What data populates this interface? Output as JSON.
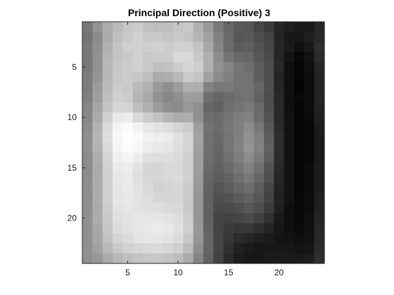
{
  "chart_data": {
    "type": "heatmap",
    "title": "Principal Direction (Positive) 3",
    "xlabel": "",
    "ylabel": "",
    "colormap": "gray",
    "xlim": [
      0.5,
      24.5
    ],
    "ylim": [
      0.5,
      24.5
    ],
    "y_direction": "reverse",
    "x_ticks": [
      5,
      10,
      15,
      20
    ],
    "y_ticks": [
      5,
      10,
      15,
      20
    ],
    "x_tick_labels": [
      "5",
      "10",
      "15",
      "20"
    ],
    "y_tick_labels": [
      "5",
      "10",
      "15",
      "20"
    ],
    "grid": false,
    "rows": 24,
    "cols": 24,
    "values": [
      [
        0.47,
        0.58,
        0.68,
        0.73,
        0.78,
        0.8,
        0.76,
        0.74,
        0.74,
        0.77,
        0.79,
        0.69,
        0.6,
        0.48,
        0.41,
        0.36,
        0.34,
        0.27,
        0.23,
        0.15,
        0.12,
        0.1,
        0.1,
        0.15
      ],
      [
        0.45,
        0.55,
        0.67,
        0.75,
        0.79,
        0.82,
        0.79,
        0.79,
        0.77,
        0.79,
        0.77,
        0.71,
        0.63,
        0.51,
        0.41,
        0.34,
        0.35,
        0.3,
        0.27,
        0.14,
        0.09,
        0.09,
        0.12,
        0.16
      ],
      [
        0.47,
        0.56,
        0.69,
        0.77,
        0.81,
        0.82,
        0.81,
        0.82,
        0.8,
        0.82,
        0.81,
        0.77,
        0.66,
        0.52,
        0.42,
        0.36,
        0.37,
        0.33,
        0.28,
        0.15,
        0.1,
        0.06,
        0.1,
        0.18
      ],
      [
        0.47,
        0.57,
        0.71,
        0.77,
        0.79,
        0.82,
        0.79,
        0.8,
        0.8,
        0.85,
        0.85,
        0.79,
        0.69,
        0.55,
        0.46,
        0.41,
        0.4,
        0.34,
        0.29,
        0.15,
        0.08,
        0.03,
        0.07,
        0.17
      ],
      [
        0.47,
        0.57,
        0.72,
        0.78,
        0.8,
        0.81,
        0.79,
        0.75,
        0.76,
        0.8,
        0.84,
        0.81,
        0.69,
        0.57,
        0.52,
        0.46,
        0.43,
        0.37,
        0.3,
        0.16,
        0.06,
        0.02,
        0.06,
        0.15
      ],
      [
        0.49,
        0.59,
        0.72,
        0.79,
        0.8,
        0.78,
        0.74,
        0.67,
        0.68,
        0.72,
        0.79,
        0.77,
        0.63,
        0.54,
        0.5,
        0.45,
        0.45,
        0.37,
        0.3,
        0.14,
        0.06,
        0.02,
        0.05,
        0.14
      ],
      [
        0.49,
        0.61,
        0.73,
        0.8,
        0.79,
        0.73,
        0.69,
        0.6,
        0.56,
        0.61,
        0.69,
        0.68,
        0.51,
        0.47,
        0.48,
        0.45,
        0.45,
        0.4,
        0.31,
        0.15,
        0.06,
        0.01,
        0.05,
        0.14
      ],
      [
        0.5,
        0.62,
        0.75,
        0.81,
        0.8,
        0.71,
        0.66,
        0.57,
        0.53,
        0.56,
        0.62,
        0.61,
        0.43,
        0.4,
        0.42,
        0.44,
        0.45,
        0.38,
        0.3,
        0.16,
        0.06,
        0.03,
        0.05,
        0.14
      ],
      [
        0.52,
        0.65,
        0.77,
        0.84,
        0.83,
        0.75,
        0.69,
        0.61,
        0.56,
        0.55,
        0.6,
        0.56,
        0.4,
        0.38,
        0.43,
        0.45,
        0.48,
        0.41,
        0.31,
        0.16,
        0.06,
        0.02,
        0.05,
        0.13
      ],
      [
        0.53,
        0.67,
        0.82,
        0.91,
        0.92,
        0.85,
        0.8,
        0.76,
        0.71,
        0.67,
        0.68,
        0.57,
        0.43,
        0.42,
        0.46,
        0.49,
        0.51,
        0.42,
        0.32,
        0.16,
        0.07,
        0.02,
        0.04,
        0.12
      ],
      [
        0.55,
        0.7,
        0.86,
        0.96,
        0.98,
        0.95,
        0.91,
        0.89,
        0.87,
        0.83,
        0.8,
        0.62,
        0.45,
        0.42,
        0.47,
        0.5,
        0.55,
        0.47,
        0.35,
        0.17,
        0.07,
        0.02,
        0.03,
        0.11
      ],
      [
        0.56,
        0.71,
        0.87,
        0.97,
        1.0,
        0.98,
        0.95,
        0.93,
        0.92,
        0.88,
        0.84,
        0.64,
        0.44,
        0.41,
        0.46,
        0.5,
        0.57,
        0.5,
        0.37,
        0.18,
        0.07,
        0.02,
        0.03,
        0.1
      ],
      [
        0.56,
        0.7,
        0.85,
        0.96,
        0.99,
        0.97,
        0.93,
        0.91,
        0.9,
        0.87,
        0.83,
        0.63,
        0.44,
        0.4,
        0.46,
        0.51,
        0.58,
        0.51,
        0.38,
        0.18,
        0.07,
        0.02,
        0.03,
        0.1
      ],
      [
        0.55,
        0.68,
        0.83,
        0.94,
        0.96,
        0.93,
        0.88,
        0.87,
        0.87,
        0.86,
        0.82,
        0.62,
        0.43,
        0.39,
        0.44,
        0.49,
        0.55,
        0.48,
        0.36,
        0.17,
        0.07,
        0.02,
        0.03,
        0.1
      ],
      [
        0.55,
        0.67,
        0.82,
        0.92,
        0.93,
        0.89,
        0.84,
        0.84,
        0.85,
        0.85,
        0.82,
        0.62,
        0.42,
        0.38,
        0.42,
        0.46,
        0.51,
        0.44,
        0.33,
        0.16,
        0.07,
        0.02,
        0.04,
        0.11
      ],
      [
        0.55,
        0.67,
        0.81,
        0.91,
        0.92,
        0.88,
        0.84,
        0.84,
        0.85,
        0.86,
        0.82,
        0.61,
        0.4,
        0.36,
        0.39,
        0.43,
        0.47,
        0.4,
        0.31,
        0.15,
        0.07,
        0.02,
        0.04,
        0.11
      ],
      [
        0.56,
        0.68,
        0.81,
        0.9,
        0.92,
        0.89,
        0.85,
        0.82,
        0.83,
        0.84,
        0.8,
        0.6,
        0.39,
        0.33,
        0.36,
        0.4,
        0.43,
        0.37,
        0.28,
        0.14,
        0.07,
        0.02,
        0.04,
        0.11
      ],
      [
        0.56,
        0.68,
        0.81,
        0.9,
        0.91,
        0.89,
        0.87,
        0.84,
        0.84,
        0.84,
        0.79,
        0.59,
        0.38,
        0.31,
        0.32,
        0.36,
        0.39,
        0.34,
        0.26,
        0.13,
        0.07,
        0.03,
        0.05,
        0.12
      ],
      [
        0.56,
        0.67,
        0.8,
        0.89,
        0.9,
        0.89,
        0.88,
        0.87,
        0.86,
        0.85,
        0.79,
        0.59,
        0.38,
        0.29,
        0.29,
        0.31,
        0.34,
        0.31,
        0.23,
        0.12,
        0.06,
        0.03,
        0.05,
        0.13
      ],
      [
        0.57,
        0.67,
        0.79,
        0.88,
        0.89,
        0.9,
        0.9,
        0.9,
        0.89,
        0.87,
        0.8,
        0.59,
        0.38,
        0.27,
        0.26,
        0.27,
        0.29,
        0.25,
        0.19,
        0.1,
        0.06,
        0.03,
        0.06,
        0.14
      ],
      [
        0.57,
        0.66,
        0.78,
        0.86,
        0.88,
        0.9,
        0.91,
        0.92,
        0.91,
        0.88,
        0.81,
        0.6,
        0.39,
        0.27,
        0.23,
        0.22,
        0.22,
        0.18,
        0.14,
        0.09,
        0.06,
        0.04,
        0.06,
        0.15
      ],
      [
        0.57,
        0.65,
        0.76,
        0.83,
        0.86,
        0.89,
        0.9,
        0.9,
        0.89,
        0.86,
        0.79,
        0.59,
        0.4,
        0.27,
        0.21,
        0.17,
        0.15,
        0.12,
        0.1,
        0.08,
        0.07,
        0.06,
        0.07,
        0.16
      ],
      [
        0.57,
        0.63,
        0.72,
        0.79,
        0.82,
        0.84,
        0.85,
        0.86,
        0.84,
        0.81,
        0.74,
        0.56,
        0.4,
        0.27,
        0.19,
        0.13,
        0.1,
        0.09,
        0.09,
        0.09,
        0.09,
        0.08,
        0.09,
        0.17
      ],
      [
        0.56,
        0.6,
        0.67,
        0.72,
        0.75,
        0.77,
        0.78,
        0.79,
        0.77,
        0.74,
        0.67,
        0.52,
        0.38,
        0.26,
        0.17,
        0.11,
        0.09,
        0.09,
        0.1,
        0.1,
        0.1,
        0.1,
        0.11,
        0.18
      ]
    ]
  }
}
